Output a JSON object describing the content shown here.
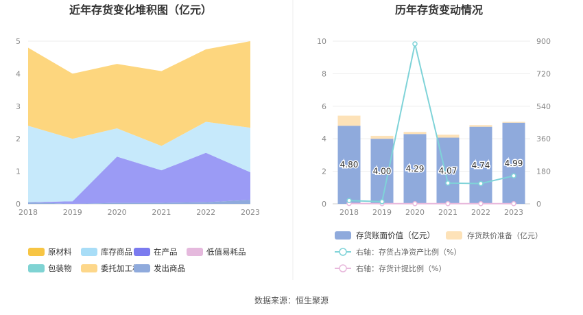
{
  "source_label": "数据来源：恒生聚源",
  "chart_data": [
    {
      "type": "area",
      "title": "近年存货变化堆积图（亿元）",
      "x": [
        "2018",
        "2019",
        "2020",
        "2021",
        "2022",
        "2023"
      ],
      "ylim": [
        0,
        5
      ],
      "yticks": [
        "0",
        "1",
        "2",
        "3",
        "4",
        "5"
      ],
      "series": [
        {
          "name": "发出商品",
          "color": "#8faadc",
          "values": [
            0.05,
            0.0,
            0.03,
            0.03,
            0.05,
            0.12
          ]
        },
        {
          "name": "在产品",
          "color": "#9b9bf5",
          "values": [
            0.0,
            0.08,
            1.42,
            1.0,
            1.52,
            0.85
          ]
        },
        {
          "name": "库存商品",
          "color": "#c6e9fb",
          "values": [
            2.35,
            1.92,
            0.87,
            0.75,
            0.95,
            1.37
          ]
        },
        {
          "name": "原材料",
          "color": "#fdd67e",
          "values": [
            2.4,
            2.0,
            1.98,
            2.3,
            2.23,
            2.66
          ]
        }
      ],
      "legend": [
        {
          "name": "原材料",
          "color": "#f7c544"
        },
        {
          "name": "库存商品",
          "color": "#a8ddf7"
        },
        {
          "name": "在产品",
          "color": "#7b7bef"
        },
        {
          "name": "低值易耗品",
          "color": "#e5b9dd"
        },
        {
          "name": "包装物",
          "color": "#7fd3d3"
        },
        {
          "name": "委托加工材料",
          "color": "#fdd78a"
        },
        {
          "name": "发出商品",
          "color": "#8faadc"
        }
      ]
    },
    {
      "type": "bar",
      "title": "历年存货变动情况",
      "categories": [
        "2018",
        "2019",
        "2020",
        "2021",
        "2022",
        "2023"
      ],
      "ylim": [
        0,
        10
      ],
      "yticks": [
        "0",
        "2",
        "4",
        "6",
        "8",
        "10"
      ],
      "y2lim": [
        0,
        900
      ],
      "y2ticks": [
        "0",
        "180",
        "360",
        "540",
        "720",
        "900"
      ],
      "series": [
        {
          "name": "存货账面价值（亿元）",
          "color": "#8faadc",
          "values": [
            4.8,
            4.0,
            4.29,
            4.07,
            4.74,
            4.99
          ],
          "labels": [
            "4.80",
            "4.00",
            "4.29",
            "4.07",
            "4.74",
            "4.99"
          ]
        },
        {
          "name": "存货跌价准备（亿元）",
          "color": "#fde2b8",
          "values": [
            0.62,
            0.18,
            0.13,
            0.18,
            0.1,
            0.05
          ]
        },
        {
          "name": "右轴：存货占净资产比例（%）",
          "color": "#7fd3d8",
          "axis": "right",
          "values": [
            18,
            12,
            885,
            115,
            112,
            155
          ]
        },
        {
          "name": "右轴：存货计提比例（%）",
          "color": "#e8b8dc",
          "axis": "right",
          "values": [
            2,
            1,
            1,
            1,
            1,
            1
          ]
        }
      ]
    }
  ]
}
